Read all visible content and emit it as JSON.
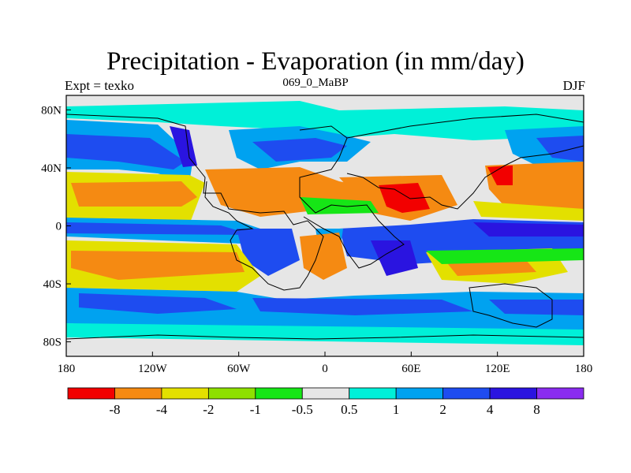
{
  "title": "Precipitation - Evaporation (in mm/day)",
  "left_label": "Expt = texko",
  "center_label": "069_0_MaBP",
  "right_label": "DJF",
  "map": {
    "x_ticks": [
      "180",
      "120W",
      "60W",
      "0",
      "60E",
      "120E",
      "180"
    ],
    "y_ticks": [
      "80N",
      "40N",
      "0",
      "40S",
      "80S"
    ]
  },
  "colorbar": {
    "colors": [
      "#f20000",
      "#f58a12",
      "#e3e000",
      "#8ee000",
      "#16e616",
      "#e6e6e6",
      "#00f0d8",
      "#00a2f0",
      "#1e4cf0",
      "#2a14e0",
      "#8a2cf0"
    ],
    "labels": [
      "-8",
      "-4",
      "-2",
      "-1",
      "-0.5",
      "0.5",
      "1",
      "2",
      "4",
      "8"
    ]
  }
}
